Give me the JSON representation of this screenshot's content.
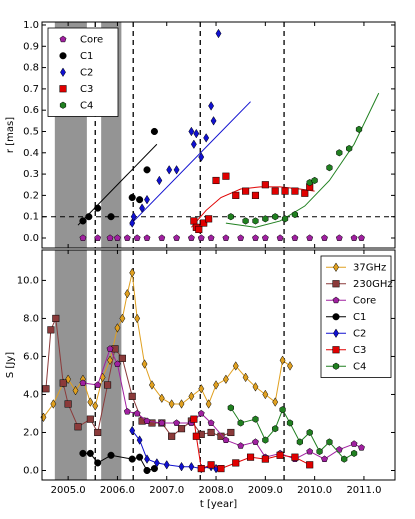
{
  "chart_data": [
    {
      "type": "scatter",
      "ylabel": "r [mas]",
      "legend": "upper left",
      "xlim": [
        2004.47,
        2011.63
      ],
      "ylim": [
        -0.047,
        1.014
      ],
      "yticks": [
        {
          "value": 0,
          "label": "0.0"
        },
        {
          "value": 0.1,
          "label": "0.1"
        },
        {
          "value": 0.2,
          "label": "0.2"
        },
        {
          "value": 0.3,
          "label": "0.3"
        },
        {
          "value": 0.4,
          "label": "0.4"
        },
        {
          "value": 0.5,
          "label": "0.5"
        },
        {
          "value": 0.6,
          "label": "0.6"
        },
        {
          "value": 0.7,
          "label": "0.7"
        },
        {
          "value": 0.8,
          "label": "0.8"
        },
        {
          "value": 0.9,
          "label": "0.9"
        },
        {
          "value": 1,
          "label": "1.0"
        }
      ],
      "xticks": [
        2005,
        2006,
        2007,
        2008,
        2009,
        2010,
        2011
      ],
      "shaded_regions": [
        [
          2004.73,
          2005.38
        ],
        [
          2005.67,
          2006.08
        ]
      ],
      "vlines": [
        2005.55,
        2006.32,
        2007.68,
        2009.38
      ],
      "hlines": [
        0.1
      ],
      "series": [
        {
          "name": "Core",
          "color": "#a020a0",
          "marker": "pentagon",
          "x": [
            2005.3,
            2005.6,
            2005.85,
            2006.0,
            2006.2,
            2006.4,
            2006.6,
            2006.9,
            2007.2,
            2007.5,
            2007.7,
            2007.9,
            2008.2,
            2008.5,
            2008.8,
            2009.0,
            2009.3,
            2009.6,
            2009.9,
            2010.2,
            2010.5,
            2010.8,
            2010.95
          ],
          "values": [
            0,
            0,
            0,
            0,
            0,
            0,
            0,
            0,
            0,
            0,
            0,
            0,
            0,
            0,
            0,
            0,
            0,
            0,
            0,
            0,
            0,
            0,
            0
          ]
        },
        {
          "name": "C1",
          "color": "#000000",
          "marker": "circle",
          "x": [
            2005.3,
            2005.42,
            2005.6,
            2005.87,
            2006.3,
            2006.45,
            2006.6,
            2006.75
          ],
          "values": [
            0.08,
            0.1,
            0.14,
            0.1,
            0.19,
            0.18,
            0.32,
            0.5
          ],
          "fit": {
            "x": [
              2005.2,
              2006.8
            ],
            "values": [
              0.06,
              0.44
            ]
          }
        },
        {
          "name": "C2",
          "color": "#1010d0",
          "marker": "diamond",
          "x": [
            2006.3,
            2006.33,
            2006.5,
            2006.6,
            2006.85,
            2007.05,
            2007.2,
            2007.5,
            2007.55,
            2007.6,
            2007.7,
            2007.8,
            2007.9,
            2007.95,
            2008.05
          ],
          "values": [
            0.07,
            0.1,
            0.14,
            0.18,
            0.27,
            0.32,
            0.32,
            0.5,
            0.44,
            0.49,
            0.38,
            0.47,
            0.62,
            0.55,
            0.96
          ],
          "fit": {
            "x": [
              2006.25,
              2008.7
            ],
            "values": [
              0.06,
              0.64
            ]
          }
        },
        {
          "name": "C3",
          "color": "#e00000",
          "marker": "square",
          "x": [
            2007.55,
            2007.6,
            2007.65,
            2007.75,
            2007.85,
            2008.0,
            2008.2,
            2008.4,
            2008.6,
            2008.8,
            2009.0,
            2009.2,
            2009.4,
            2009.6,
            2009.8,
            2009.9
          ],
          "values": [
            0.08,
            0.05,
            0.04,
            0.07,
            0.09,
            0.27,
            0.29,
            0.2,
            0.22,
            0.2,
            0.25,
            0.22,
            0.22,
            0.22,
            0.21,
            0.24
          ],
          "fit": {
            "x": [
              2007.5,
              2007.8,
              2008.1,
              2008.5,
              2008.9,
              2009.3,
              2009.7,
              2010.0
            ],
            "values": [
              0.05,
              0.13,
              0.19,
              0.23,
              0.24,
              0.24,
              0.23,
              0.22
            ]
          }
        },
        {
          "name": "C4",
          "color": "#208020",
          "marker": "hexagon",
          "x": [
            2008.3,
            2008.6,
            2008.8,
            2009.0,
            2009.2,
            2009.4,
            2009.6,
            2009.9,
            2010.0,
            2010.3,
            2010.5,
            2010.7,
            2010.9
          ],
          "values": [
            0.1,
            0.08,
            0.08,
            0.09,
            0.1,
            0.09,
            0.11,
            0.26,
            0.27,
            0.33,
            0.4,
            0.42,
            0.51
          ],
          "fit": {
            "x": [
              2008.2,
              2008.8,
              2009.3,
              2009.8,
              2010.3,
              2010.8,
              2011.3
            ],
            "values": [
              0.07,
              0.05,
              0.08,
              0.15,
              0.27,
              0.44,
              0.68
            ]
          }
        }
      ]
    },
    {
      "type": "line",
      "ylabel": "S [Jy]",
      "xlabel": "t [year]",
      "legend": "upper right",
      "xlim": [
        2004.47,
        2011.63
      ],
      "ylim": [
        -0.5,
        11.6
      ],
      "yticks": [
        {
          "value": 0,
          "label": "0.0"
        },
        {
          "value": 2,
          "label": "2.0"
        },
        {
          "value": 4,
          "label": "4.0"
        },
        {
          "value": 6,
          "label": "6.0"
        },
        {
          "value": 8,
          "label": "8.0"
        },
        {
          "value": 10,
          "label": "10.0"
        }
      ],
      "xticks": [
        {
          "value": 2005,
          "label": "2005.0"
        },
        {
          "value": 2006,
          "label": "2006.0"
        },
        {
          "value": 2007,
          "label": "2007.0"
        },
        {
          "value": 2008,
          "label": "2008.0"
        },
        {
          "value": 2009,
          "label": "2009.0"
        },
        {
          "value": 2010,
          "label": "2010.0"
        },
        {
          "value": 2011,
          "label": "2011.0"
        }
      ],
      "shaded_regions": [
        [
          2004.73,
          2005.38
        ],
        [
          2005.67,
          2006.08
        ]
      ],
      "vlines": [
        2005.55,
        2006.32,
        2007.68,
        2009.38
      ],
      "series": [
        {
          "name": "37GHz",
          "color": "#e0a020",
          "marker": "diamond",
          "x": [
            2004.5,
            2004.7,
            2004.9,
            2005.0,
            2005.15,
            2005.3,
            2005.45,
            2005.55,
            2005.7,
            2005.85,
            2006.0,
            2006.1,
            2006.2,
            2006.3,
            2006.4,
            2006.55,
            2006.7,
            2006.9,
            2007.1,
            2007.3,
            2007.5,
            2007.7,
            2007.85,
            2008.0,
            2008.2,
            2008.4,
            2008.6,
            2008.8,
            2009.0,
            2009.2,
            2009.35,
            2009.5
          ],
          "values": [
            2.8,
            3.5,
            4.6,
            4.8,
            4.2,
            4.8,
            3.6,
            3.4,
            4.9,
            5.8,
            7.5,
            8.0,
            9.3,
            10.4,
            8.0,
            5.6,
            4.5,
            3.8,
            3.5,
            3.5,
            3.9,
            4.3,
            3.5,
            4.5,
            4.8,
            5.5,
            4.9,
            4.4,
            4.0,
            3.6,
            5.8,
            5.5
          ]
        },
        {
          "name": "230GHz",
          "color": "#8b3a3a",
          "marker": "square",
          "x": [
            2004.55,
            2004.65,
            2004.75,
            2004.9,
            2005.0,
            2005.2,
            2005.45,
            2005.6,
            2005.8,
            2005.95,
            2006.1,
            2006.3,
            2006.5,
            2006.7,
            2006.9,
            2007.1,
            2007.3,
            2007.5,
            2007.7,
            2007.9,
            2008.1,
            2008.3
          ],
          "values": [
            4.3,
            7.4,
            8.0,
            4.6,
            3.5,
            2.3,
            2.7,
            2.0,
            4.5,
            6.4,
            5.9,
            3.9,
            2.6,
            2.5,
            2.5,
            1.8,
            2.2,
            2.6,
            1.9,
            2.0,
            1.8,
            2.0
          ]
        },
        {
          "name": "Core",
          "color": "#a020a0",
          "marker": "pentagon",
          "x": [
            2005.3,
            2005.6,
            2005.85,
            2006.0,
            2006.2,
            2006.4,
            2006.6,
            2006.9,
            2007.2,
            2007.5,
            2007.7,
            2007.9,
            2008.2,
            2008.5,
            2008.8,
            2009.0,
            2009.3,
            2009.6,
            2009.9,
            2010.2,
            2010.5,
            2010.8,
            2010.95
          ],
          "values": [
            4.6,
            4.5,
            6.4,
            5.6,
            3.1,
            3.0,
            2.6,
            2.5,
            2.5,
            2.5,
            3.0,
            2.5,
            1.6,
            1.3,
            1.5,
            0.7,
            0.9,
            0.6,
            1.0,
            0.6,
            1.1,
            1.4,
            1.2
          ]
        },
        {
          "name": "C1",
          "color": "#000000",
          "marker": "circle",
          "x": [
            2005.3,
            2005.45,
            2005.6,
            2005.87,
            2006.3,
            2006.45,
            2006.6,
            2006.75
          ],
          "values": [
            0.9,
            0.9,
            0.4,
            0.8,
            0.6,
            0.7,
            0.0,
            0.1
          ]
        },
        {
          "name": "C2",
          "color": "#1010d0",
          "marker": "diamond",
          "x": [
            2006.3,
            2006.45,
            2006.6,
            2006.8,
            2007.0,
            2007.3,
            2007.5,
            2007.7,
            2007.9,
            2008.0
          ],
          "values": [
            2.1,
            1.6,
            0.6,
            0.4,
            0.3,
            0.2,
            0.2,
            0.1,
            0.2,
            0.1
          ]
        },
        {
          "name": "C3",
          "color": "#e00000",
          "marker": "square",
          "x": [
            2007.55,
            2007.6,
            2007.7,
            2007.9,
            2008.1,
            2008.4,
            2008.7,
            2009.0,
            2009.3,
            2009.6,
            2009.9
          ],
          "values": [
            2.7,
            1.8,
            0.1,
            0.3,
            0.1,
            0.4,
            0.7,
            0.6,
            0.8,
            0.7,
            0.3
          ]
        },
        {
          "name": "C4",
          "color": "#208020",
          "marker": "hexagon",
          "x": [
            2008.3,
            2008.5,
            2008.8,
            2009.0,
            2009.2,
            2009.35,
            2009.5,
            2009.7,
            2009.9,
            2010.1,
            2010.3,
            2010.6,
            2010.8
          ],
          "values": [
            3.3,
            2.5,
            2.7,
            1.6,
            2.2,
            3.2,
            2.5,
            1.5,
            2.0,
            1.0,
            1.5,
            0.6,
            0.9
          ]
        }
      ]
    }
  ]
}
